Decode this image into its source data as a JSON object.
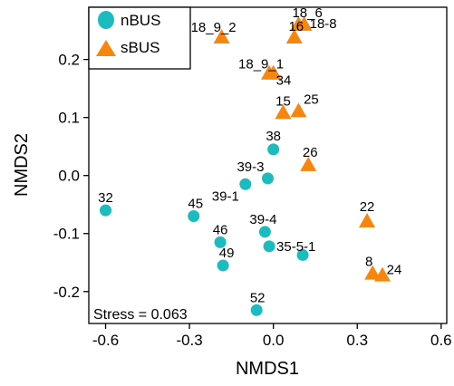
{
  "chart_data": {
    "type": "scatter",
    "xlabel": "NMDS1",
    "ylabel": "NMDS2",
    "xlim": [
      -0.66,
      0.62
    ],
    "ylim": [
      -0.255,
      0.29
    ],
    "xticks": [
      -0.6,
      -0.3,
      0.0,
      0.3,
      0.6
    ],
    "yticks": [
      -0.2,
      -0.1,
      0.0,
      0.1,
      0.2
    ],
    "xtick_labels": [
      "-0.6",
      "-0.3",
      "0.0",
      "0.3",
      "0.6"
    ],
    "ytick_labels": [
      "-0.2",
      "-0.1",
      "0.0",
      "0.1",
      "0.2"
    ],
    "legend_position": "top-left",
    "annotation": "Stress = 0.063",
    "series": [
      {
        "name": "nBUS",
        "marker": "circle",
        "color": "#1ABCBF",
        "points": [
          {
            "x": -0.6,
            "y": -0.06,
            "label": "32"
          },
          {
            "x": -0.285,
            "y": -0.07,
            "label": "45"
          },
          {
            "x": -0.19,
            "y": -0.115,
            "label": "46"
          },
          {
            "x": -0.18,
            "y": -0.155,
            "label": "49"
          },
          {
            "x": -0.1,
            "y": -0.015,
            "label": "39-1"
          },
          {
            "x": -0.02,
            "y": -0.005,
            "label": "39-3"
          },
          {
            "x": 0.0,
            "y": 0.045,
            "label": "38"
          },
          {
            "x": -0.03,
            "y": -0.097,
            "label": "39-4"
          },
          {
            "x": -0.015,
            "y": -0.122,
            "label": "35-5-1"
          },
          {
            "x": 0.105,
            "y": -0.137,
            "label": ""
          },
          {
            "x": -0.06,
            "y": -0.232,
            "label": "52"
          }
        ]
      },
      {
        "name": "sBUS",
        "marker": "triangle",
        "color": "#F7860F",
        "points": [
          {
            "x": -0.185,
            "y": 0.24,
            "label": "18_9_2"
          },
          {
            "x": 0.075,
            "y": 0.24,
            "label": "16"
          },
          {
            "x": 0.09,
            "y": 0.262,
            "label": "18_6"
          },
          {
            "x": 0.11,
            "y": 0.262,
            "label": "18-8"
          },
          {
            "x": -0.015,
            "y": 0.178,
            "label": "18_9_1"
          },
          {
            "x": 0.0,
            "y": 0.178,
            "label": "34"
          },
          {
            "x": 0.035,
            "y": 0.11,
            "label": "15"
          },
          {
            "x": 0.09,
            "y": 0.113,
            "label": "25"
          },
          {
            "x": 0.125,
            "y": 0.02,
            "label": "26"
          },
          {
            "x": 0.335,
            "y": -0.077,
            "label": "22"
          },
          {
            "x": 0.355,
            "y": -0.167,
            "label": "8"
          },
          {
            "x": 0.39,
            "y": -0.17,
            "label": "24"
          }
        ]
      }
    ]
  }
}
